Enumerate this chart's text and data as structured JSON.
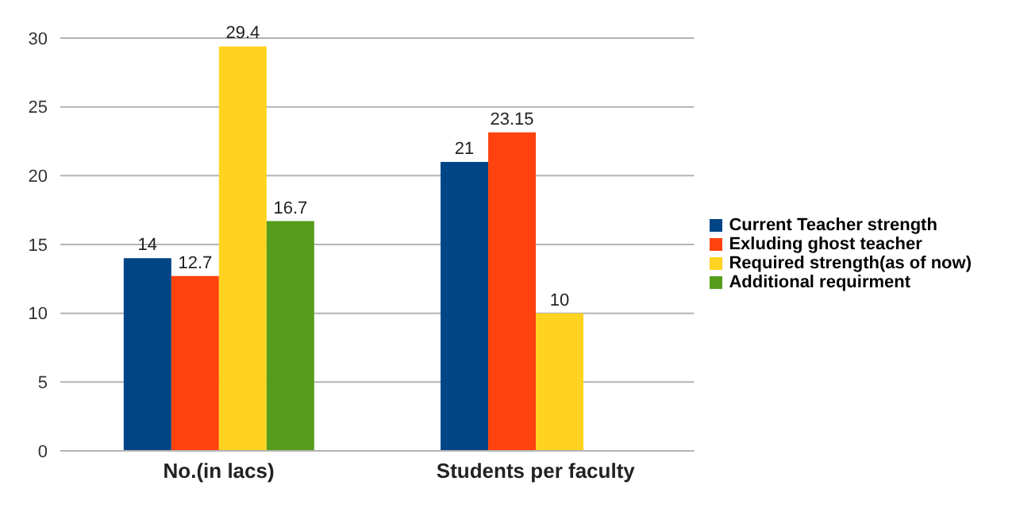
{
  "chart_data": {
    "type": "bar",
    "categories": [
      "No.(in lacs)",
      "Students per faculty"
    ],
    "series": [
      {
        "name": "Current Teacher strength",
        "color": "#004586",
        "values": [
          14,
          21
        ]
      },
      {
        "name": "Exluding ghost teacher",
        "color": "#ff420e",
        "values": [
          12.7,
          23.15
        ]
      },
      {
        "name": "Required strength(as of now)",
        "color": "#ffd320",
        "values": [
          29.4,
          10
        ]
      },
      {
        "name": "Additional requirment",
        "color": "#579d1c",
        "values": [
          16.7,
          null
        ]
      }
    ],
    "ylim": [
      0,
      30
    ],
    "yticks": [
      0,
      5,
      10,
      15,
      20,
      25,
      30
    ],
    "grid": "y",
    "legend": "right",
    "data_labels": true
  }
}
